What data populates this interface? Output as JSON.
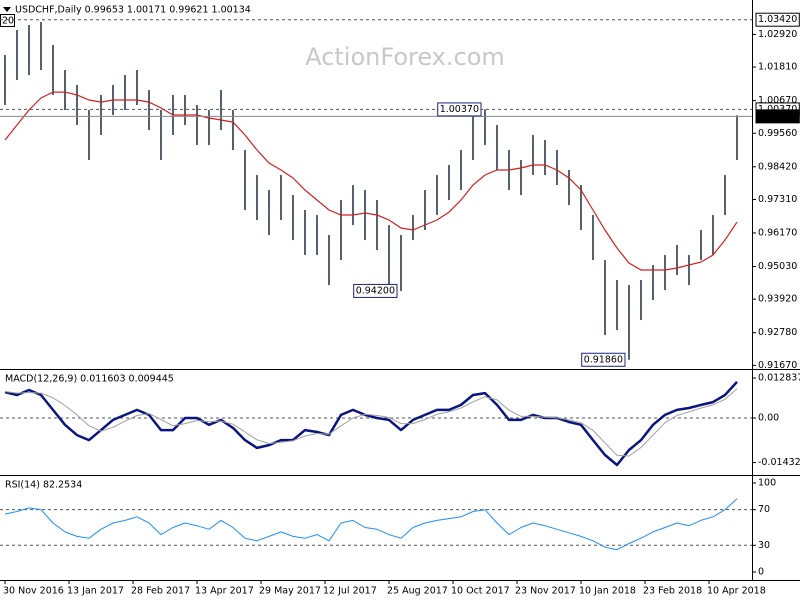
{
  "chart_data": [
    {
      "type": "ohlc",
      "title": "USDCHF,Daily  0.99653 1.00171 0.99621 1.00134",
      "watermark": "ActionForex.com",
      "badge": "20",
      "bar_color": "#2b3a4a",
      "x": [
        0,
        6,
        12,
        18,
        24,
        30,
        36,
        42,
        48,
        54,
        60,
        66,
        72,
        78,
        84,
        90,
        96,
        102,
        108,
        114,
        120,
        126,
        132,
        138,
        144,
        150,
        156,
        162,
        168,
        174,
        180,
        186,
        192,
        198,
        204,
        210,
        216,
        222,
        228,
        234,
        240,
        246,
        252,
        258,
        264,
        270,
        276,
        282,
        288,
        294,
        300,
        306,
        312,
        318,
        324,
        330,
        336,
        342,
        348,
        354,
        360,
        366
      ],
      "xlim": [
        -2.5,
        373.5
      ],
      "high": [
        1.0222,
        1.0307,
        1.0324,
        1.0334,
        1.0256,
        1.0171,
        1.012,
        1.0035,
        1.0086,
        1.012,
        1.0154,
        1.0171,
        1.0103,
        1.0035,
        1.0086,
        1.0086,
        1.0052,
        1.0035,
        1.0103,
        1.0035,
        0.9899,
        0.9814,
        0.9763,
        0.9814,
        0.9746,
        0.9695,
        0.9678,
        0.961,
        0.9729,
        0.978,
        0.9763,
        0.9729,
        0.9644,
        0.961,
        0.9678,
        0.9763,
        0.9814,
        0.9848,
        0.9899,
        1.0018,
        1.0037,
        0.9984,
        0.9899,
        0.9865,
        0.995,
        0.9933,
        0.9899,
        0.9831,
        0.978,
        0.9678,
        0.9525,
        0.9457,
        0.944,
        0.9457,
        0.9508,
        0.9542,
        0.9576,
        0.9542,
        0.9627,
        0.9678,
        0.9814,
        1.0017
      ],
      "low": [
        1.0052,
        1.0137,
        1.0154,
        1.0171,
        1.0086,
        1.0035,
        0.9984,
        0.9865,
        0.995,
        1.0018,
        1.0035,
        1.0052,
        0.9967,
        0.9865,
        0.995,
        0.9984,
        0.9916,
        0.9916,
        0.9967,
        0.9899,
        0.9695,
        0.9661,
        0.961,
        0.9661,
        0.9593,
        0.9542,
        0.9542,
        0.944,
        0.9525,
        0.9644,
        0.9593,
        0.9559,
        0.944,
        0.942,
        0.9593,
        0.9627,
        0.9678,
        0.9729,
        0.9763,
        0.9865,
        0.9916,
        0.9831,
        0.9763,
        0.9746,
        0.9814,
        0.9814,
        0.978,
        0.9712,
        0.9627,
        0.9525,
        0.927,
        0.9287,
        0.9186,
        0.9321,
        0.9389,
        0.9423,
        0.9474,
        0.944,
        0.9525,
        0.9542,
        0.9678,
        0.9865
      ],
      "ma": {
        "color": "#d42020",
        "values": [
          0.9933,
          0.9984,
          1.0035,
          1.0076,
          1.0096,
          1.0096,
          1.0086,
          1.0069,
          1.0062,
          1.0069,
          1.0069,
          1.0069,
          1.0062,
          1.0042,
          1.0018,
          1.0018,
          1.0018,
          1.0008,
          1.0001,
          0.9994,
          0.995,
          0.9899,
          0.9855,
          0.9831,
          0.9804,
          0.9763,
          0.9729,
          0.9695,
          0.9678,
          0.9678,
          0.9685,
          0.9678,
          0.9661,
          0.9634,
          0.9627,
          0.9644,
          0.9661,
          0.9688,
          0.9729,
          0.978,
          0.9814,
          0.9831,
          0.9831,
          0.9838,
          0.9848,
          0.9848,
          0.9831,
          0.9804,
          0.9763,
          0.9695,
          0.9627,
          0.9566,
          0.9515,
          0.9491,
          0.9491,
          0.9491,
          0.9498,
          0.9508,
          0.9518,
          0.9542,
          0.9593,
          0.9654
        ]
      },
      "ylim": [
        0.9158,
        1.0409
      ],
      "yticks": [
        {
          "value": 1.0292,
          "label": "1.02920"
        },
        {
          "value": 1.0181,
          "label": "1.01810"
        },
        {
          "value": 1.0067,
          "label": "1.00670"
        },
        {
          "value": 0.9956,
          "label": "0.99560"
        },
        {
          "value": 0.9842,
          "label": "0.98420"
        },
        {
          "value": 0.9731,
          "label": "0.97310"
        },
        {
          "value": 0.9617,
          "label": "0.96170"
        },
        {
          "value": 0.9503,
          "label": "0.95030"
        },
        {
          "value": 0.9392,
          "label": "0.93920"
        },
        {
          "value": 0.9278,
          "label": "0.92780"
        },
        {
          "value": 0.9167,
          "label": "0.91670"
        }
      ],
      "levels": [
        {
          "value": 1.0342,
          "label": "1.03420"
        },
        {
          "value": 1.0037,
          "label": "1.00370"
        }
      ],
      "current": {
        "value": 1.00134,
        "label": "1.00134"
      },
      "annotations": [
        {
          "x": 240,
          "value": 1.0037,
          "label": "1.00370"
        },
        {
          "x": 198,
          "value": 0.942,
          "label": "0.94200"
        },
        {
          "x": 312,
          "value": 0.9186,
          "label": "0.91860"
        }
      ]
    },
    {
      "type": "line",
      "title": "MACD(12,26,9) 0.011603 0.009445",
      "lines": [
        {
          "color": "#0a1580",
          "width": 2.5,
          "values": [
            0.0083,
            0.0074,
            0.009,
            0.0074,
            0.0026,
            -0.0022,
            -0.0055,
            -0.0071,
            -0.0039,
            -0.0006,
            0.001,
            0.0026,
            0.001,
            -0.0039,
            -0.0039,
            0,
            0,
            -0.0022,
            -0.0006,
            -0.0032,
            -0.0071,
            -0.0096,
            -0.0087,
            -0.0071,
            -0.0071,
            -0.0039,
            -0.0045,
            -0.0055,
            0.001,
            0.0026,
            0.001,
            0,
            -0.0006,
            -0.0039,
            -0.0006,
            0.001,
            0.0026,
            0.0026,
            0.0042,
            0.0074,
            0.008,
            0.0042,
            -0.0006,
            -0.0006,
            0.001,
            0,
            0,
            -0.0013,
            -0.0022,
            -0.0071,
            -0.0119,
            -0.0151,
            -0.0103,
            -0.0071,
            -0.0022,
            0.001,
            0.0026,
            0.0032,
            0.0042,
            0.0051,
            0.0074,
            0.011603
          ]
        },
        {
          "color": "#a0a0a0",
          "width": 1,
          "values": [
            0.0085,
            0.008,
            0.0082,
            0.008,
            0.0065,
            0.004,
            0.001,
            -0.0025,
            -0.0042,
            -0.003,
            -0.001,
            0.0008,
            0.0014,
            -0.0005,
            -0.0025,
            -0.0018,
            -0.0008,
            -0.0012,
            -0.001,
            -0.002,
            -0.0045,
            -0.007,
            -0.0082,
            -0.0078,
            -0.0073,
            -0.0058,
            -0.005,
            -0.0052,
            -0.0025,
            0,
            0.0012,
            0.0008,
            0.0002,
            -0.0018,
            -0.0018,
            -0.0005,
            0.0012,
            0.002,
            0.0032,
            0.0052,
            0.0068,
            0.0058,
            0.0025,
            0.0005,
            0.0005,
            0.0003,
            0.0001,
            -0.0006,
            -0.0015,
            -0.004,
            -0.008,
            -0.012,
            -0.0122,
            -0.0095,
            -0.0055,
            -0.0015,
            0.0008,
            0.002,
            0.0032,
            0.0042,
            0.006,
            0.009445
          ]
        }
      ],
      "ylim": [
        -0.018,
        0.0151
      ],
      "yticks": [
        0.012837,
        {
          "value": 0,
          "label": "0.00"
        },
        -0.014322
      ],
      "levels": [
        0
      ]
    },
    {
      "type": "line",
      "title": "RSI(14) 82.2534",
      "lines": [
        {
          "color": "#1e8fff",
          "width": 1,
          "values": [
            65,
            68,
            72,
            70,
            55,
            45,
            40,
            38,
            48,
            55,
            58,
            62,
            55,
            42,
            50,
            55,
            52,
            48,
            58,
            50,
            38,
            35,
            40,
            45,
            40,
            38,
            42,
            35,
            55,
            58,
            50,
            48,
            42,
            38,
            50,
            55,
            58,
            60,
            62,
            68,
            70,
            55,
            42,
            50,
            55,
            52,
            48,
            44,
            40,
            35,
            28,
            25,
            32,
            38,
            45,
            50,
            55,
            52,
            58,
            62,
            70,
            82.2534
          ]
        }
      ],
      "ylim": [
        -9,
        106.7
      ],
      "yticks": [
        100,
        70,
        30,
        0
      ],
      "levels": [
        70,
        30
      ],
      "xticks": [
        {
          "value": 0,
          "label": "30 Nov 2016"
        },
        {
          "value": 32,
          "label": "13 Jan 2017"
        },
        {
          "value": 64,
          "label": "28 Feb 2017"
        },
        {
          "value": 96,
          "label": "13 Apr 2017"
        },
        {
          "value": 128,
          "label": "29 May 2017"
        },
        {
          "value": 160,
          "label": "12 Jul 2017"
        },
        {
          "value": 192,
          "label": "25 Aug 2017"
        },
        {
          "value": 224,
          "label": "10 Oct 2017"
        },
        {
          "value": 256,
          "label": "23 Nov 2017"
        },
        {
          "value": 288,
          "label": "10 Jan 2018"
        },
        {
          "value": 320,
          "label": "23 Feb 2018"
        },
        {
          "value": 352,
          "label": "10 Apr 2018"
        }
      ]
    }
  ]
}
